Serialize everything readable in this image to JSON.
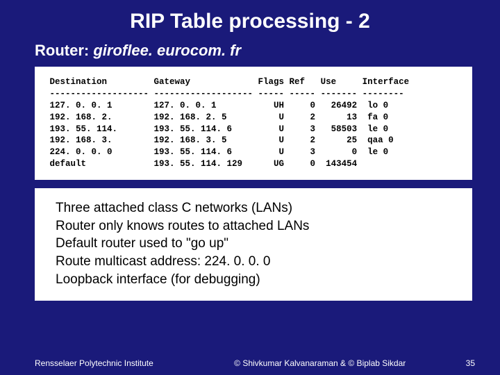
{
  "title": "RIP Table processing - 2",
  "router_label": "Router:",
  "router_host": "giroflee. eurocom. fr",
  "table": {
    "headers": {
      "dest": "Destination",
      "gateway": "Gateway",
      "flags": "Flags",
      "ref": "Ref",
      "use": "Use",
      "iface": "Interface"
    },
    "rows": [
      {
        "dest": "127. 0. 0. 1",
        "gateway": "127. 0. 0. 1",
        "flags": "UH",
        "ref": "0",
        "use": "26492",
        "iface": "lo 0"
      },
      {
        "dest": "192. 168. 2.",
        "gateway": "192. 168. 2. 5",
        "flags": "U",
        "ref": "2",
        "use": "13",
        "iface": "fa 0"
      },
      {
        "dest": "193. 55. 114.",
        "gateway": "193. 55. 114. 6",
        "flags": "U",
        "ref": "3",
        "use": "58503",
        "iface": "le 0"
      },
      {
        "dest": "192. 168. 3.",
        "gateway": "192. 168. 3. 5",
        "flags": "U",
        "ref": "2",
        "use": "25",
        "iface": "qaa 0"
      },
      {
        "dest": "224. 0. 0. 0",
        "gateway": "193. 55. 114. 6",
        "flags": "U",
        "ref": "3",
        "use": "0",
        "iface": "le 0"
      },
      {
        "dest": "default",
        "gateway": "193. 55. 114. 129",
        "flags": "UG",
        "ref": "0",
        "use": "143454",
        "iface": ""
      }
    ],
    "col_widths": {
      "dest": 20,
      "gateway": 20,
      "flags": 6,
      "ref": 6,
      "use": 8,
      "iface": 9
    }
  },
  "notes": [
    "Three attached class C networks (LANs)",
    "Router only knows routes to attached LANs",
    "Default router used to \"go up\"",
    "Route multicast address: 224. 0. 0. 0",
    "Loopback interface (for debugging)"
  ],
  "footer": {
    "left": "Rensselaer Polytechnic Institute",
    "center": "© Shivkumar Kalvanaraman   &   © Biplab Sikdar",
    "page": "35"
  },
  "colors": {
    "background": "#1a1a7a",
    "panel": "#ffffff",
    "text_light": "#ffffff",
    "text_dark": "#000000"
  }
}
